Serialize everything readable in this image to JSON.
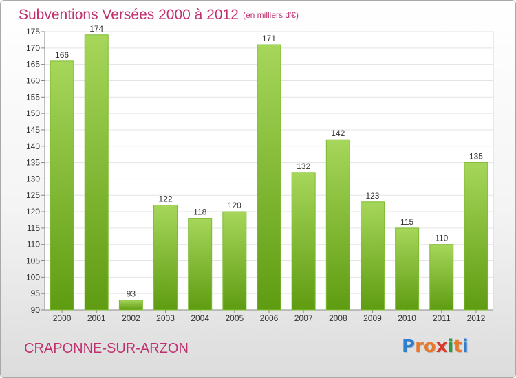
{
  "header": {
    "title": "Subventions Versées 2000 à 2012",
    "subtitle": "(en milliers d'€)"
  },
  "footer": {
    "commune": "CRAPONNE-SUR-ARZON",
    "logo_letters": [
      "P",
      "r",
      "o",
      "x",
      "i",
      "t",
      "i"
    ]
  },
  "colors": {
    "title": "#c0306e",
    "bar_light": "#a6d65a",
    "bar_dark": "#5f9c12",
    "logo": [
      "#2f7fd1",
      "#e8792c",
      "#e8792c",
      "#d63b2c",
      "#2a9f3f",
      "#e8792c",
      "#2f7fd1"
    ]
  },
  "chart_data": {
    "type": "bar",
    "title": "Subventions Versées 2000 à 2012",
    "subtitle": "(en milliers d'€)",
    "categories": [
      "2000",
      "2001",
      "2002",
      "2003",
      "2004",
      "2005",
      "2006",
      "2007",
      "2008",
      "2009",
      "2010",
      "2011",
      "2012"
    ],
    "values": [
      166,
      174,
      93,
      122,
      118,
      120,
      171,
      132,
      142,
      123,
      115,
      110,
      135
    ],
    "ylim": [
      90,
      175
    ],
    "yticks": [
      90,
      95,
      100,
      105,
      110,
      115,
      120,
      125,
      130,
      135,
      140,
      145,
      150,
      155,
      160,
      165,
      170,
      175
    ],
    "grid": true,
    "data_labels": true
  }
}
